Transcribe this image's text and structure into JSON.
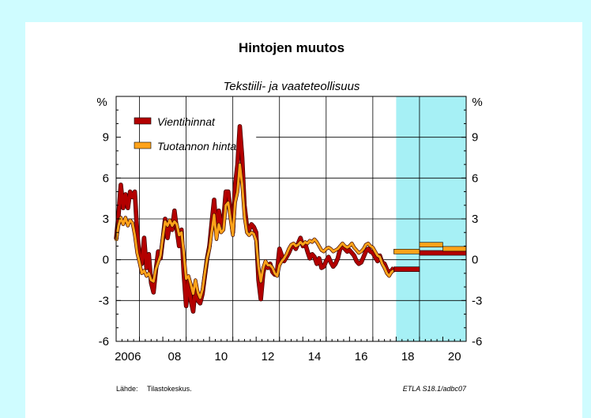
{
  "chart_data": {
    "type": "line",
    "title": "Hintojen muutos",
    "subtitle": "Tekstiili- ja vaateteollisuus",
    "y_unit_left": "%",
    "y_unit_right": "%",
    "ylim": [
      -6,
      12
    ],
    "xlim": [
      2006.0,
      2021.0
    ],
    "y_ticks": [
      -6,
      -3,
      0,
      3,
      6,
      9
    ],
    "x_tick_labels": [
      {
        "x": 2006.0,
        "label": "2006"
      },
      {
        "x": 2008.0,
        "label": "08"
      },
      {
        "x": 2010.0,
        "label": "10"
      },
      {
        "x": 2012.0,
        "label": "12"
      },
      {
        "x": 2014.0,
        "label": "14"
      },
      {
        "x": 2016.0,
        "label": "16"
      },
      {
        "x": 2018.0,
        "label": "18"
      },
      {
        "x": 2020.0,
        "label": "20"
      }
    ],
    "forecast_shading": [
      [
        2018.0,
        2021.0
      ]
    ],
    "grid": true,
    "legend_position": "top-left",
    "series": [
      {
        "name": "Vientihinnat",
        "color": "#b30000",
        "points": [
          [
            2006.0,
            1.5
          ],
          [
            2006.1,
            3.3
          ],
          [
            2006.2,
            5.5
          ],
          [
            2006.3,
            3.8
          ],
          [
            2006.4,
            4.8
          ],
          [
            2006.5,
            3.8
          ],
          [
            2006.6,
            5.0
          ],
          [
            2006.7,
            4.6
          ],
          [
            2006.8,
            5.0
          ],
          [
            2006.9,
            2.0
          ],
          [
            2007.0,
            0.2
          ],
          [
            2007.1,
            -0.3
          ],
          [
            2007.2,
            1.6
          ],
          [
            2007.3,
            -0.6
          ],
          [
            2007.4,
            0.4
          ],
          [
            2007.5,
            -1.7
          ],
          [
            2007.6,
            -2.4
          ],
          [
            2007.7,
            -0.8
          ],
          [
            2007.8,
            0.6
          ],
          [
            2007.9,
            0.1
          ],
          [
            2008.0,
            1.5
          ],
          [
            2008.1,
            3.0
          ],
          [
            2008.2,
            1.6
          ],
          [
            2008.3,
            2.6
          ],
          [
            2008.4,
            2.2
          ],
          [
            2008.5,
            3.6
          ],
          [
            2008.6,
            2.2
          ],
          [
            2008.7,
            1.0
          ],
          [
            2008.8,
            2.2
          ],
          [
            2008.9,
            -1.0
          ],
          [
            2009.0,
            -3.4
          ],
          [
            2009.1,
            -1.4
          ],
          [
            2009.2,
            -3.0
          ],
          [
            2009.3,
            -3.8
          ],
          [
            2009.4,
            -2.0
          ],
          [
            2009.5,
            -3.0
          ],
          [
            2009.6,
            -3.2
          ],
          [
            2009.7,
            -2.5
          ],
          [
            2009.8,
            -1.2
          ],
          [
            2009.9,
            0.1
          ],
          [
            2010.0,
            1.0
          ],
          [
            2010.1,
            2.8
          ],
          [
            2010.2,
            4.4
          ],
          [
            2010.3,
            2.0
          ],
          [
            2010.4,
            3.6
          ],
          [
            2010.5,
            2.5
          ],
          [
            2010.6,
            3.0
          ],
          [
            2010.7,
            5.0
          ],
          [
            2010.8,
            5.0
          ],
          [
            2010.9,
            3.6
          ],
          [
            2011.0,
            2.0
          ],
          [
            2011.1,
            5.5
          ],
          [
            2011.2,
            7.0
          ],
          [
            2011.3,
            9.8
          ],
          [
            2011.4,
            7.5
          ],
          [
            2011.5,
            4.0
          ],
          [
            2011.6,
            2.5
          ],
          [
            2011.7,
            2.2
          ],
          [
            2011.8,
            2.6
          ],
          [
            2011.9,
            2.4
          ],
          [
            2012.0,
            2.0
          ],
          [
            2012.1,
            -1.5
          ],
          [
            2012.2,
            -2.9
          ],
          [
            2012.3,
            -1.0
          ],
          [
            2012.4,
            -0.2
          ],
          [
            2012.5,
            -0.6
          ],
          [
            2012.6,
            -0.3
          ],
          [
            2012.7,
            -0.9
          ],
          [
            2012.8,
            -1.1
          ],
          [
            2012.9,
            -0.8
          ],
          [
            2013.0,
            0.8
          ],
          [
            2013.1,
            0.3
          ],
          [
            2013.2,
            -0.1
          ],
          [
            2013.3,
            0.2
          ],
          [
            2013.4,
            0.5
          ],
          [
            2013.5,
            0.9
          ],
          [
            2013.6,
            1.1
          ],
          [
            2013.7,
            0.8
          ],
          [
            2013.8,
            1.2
          ],
          [
            2013.9,
            1.6
          ],
          [
            2014.0,
            1.0
          ],
          [
            2014.1,
            1.2
          ],
          [
            2014.2,
            0.6
          ],
          [
            2014.3,
            0.1
          ],
          [
            2014.4,
            0.4
          ],
          [
            2014.5,
            0.2
          ],
          [
            2014.6,
            -0.3
          ],
          [
            2014.7,
            0.1
          ],
          [
            2014.8,
            -0.6
          ],
          [
            2014.9,
            -0.5
          ],
          [
            2015.0,
            -0.1
          ],
          [
            2015.1,
            0.2
          ],
          [
            2015.2,
            -0.2
          ],
          [
            2015.3,
            -0.5
          ],
          [
            2015.4,
            -0.3
          ],
          [
            2015.5,
            0.1
          ],
          [
            2015.6,
            0.8
          ],
          [
            2015.7,
            1.0
          ],
          [
            2015.8,
            0.8
          ],
          [
            2015.9,
            0.6
          ],
          [
            2016.0,
            0.7
          ],
          [
            2016.1,
            0.5
          ],
          [
            2016.2,
            0.3
          ],
          [
            2016.3,
            -0.1
          ],
          [
            2016.4,
            -0.3
          ],
          [
            2016.5,
            -0.2
          ],
          [
            2016.6,
            0.2
          ],
          [
            2016.7,
            0.6
          ],
          [
            2016.8,
            0.8
          ],
          [
            2016.9,
            0.6
          ],
          [
            2017.0,
            0.5
          ],
          [
            2017.1,
            0.2
          ],
          [
            2017.2,
            -0.1
          ],
          [
            2017.3,
            0.3
          ],
          [
            2017.4,
            -0.2
          ],
          [
            2017.5,
            -0.3
          ],
          [
            2017.6,
            -0.7
          ],
          [
            2017.7,
            -1.0
          ],
          [
            2017.8,
            -0.8
          ],
          [
            2017.9,
            -0.6
          ]
        ],
        "forecast": [
          {
            "x0": 2017.9,
            "x1": 2019.0,
            "y": -0.7
          },
          {
            "x0": 2019.0,
            "x1": 2021.0,
            "y": 0.5
          }
        ]
      },
      {
        "name": "Tuotannon hinta",
        "color": "#ffa31a",
        "points": [
          [
            2006.0,
            1.4
          ],
          [
            2006.1,
            2.5
          ],
          [
            2006.2,
            3.1
          ],
          [
            2006.3,
            2.6
          ],
          [
            2006.4,
            3.1
          ],
          [
            2006.5,
            2.5
          ],
          [
            2006.6,
            2.9
          ],
          [
            2006.7,
            2.7
          ],
          [
            2006.8,
            1.8
          ],
          [
            2006.9,
            0.5
          ],
          [
            2007.0,
            -0.2
          ],
          [
            2007.1,
            -1.0
          ],
          [
            2007.2,
            -0.8
          ],
          [
            2007.3,
            -1.2
          ],
          [
            2007.4,
            -1.0
          ],
          [
            2007.5,
            -1.5
          ],
          [
            2007.6,
            -1.6
          ],
          [
            2007.7,
            -0.7
          ],
          [
            2007.8,
            -0.2
          ],
          [
            2007.9,
            0.3
          ],
          [
            2008.0,
            1.7
          ],
          [
            2008.1,
            2.8
          ],
          [
            2008.2,
            2.5
          ],
          [
            2008.3,
            2.9
          ],
          [
            2008.4,
            2.5
          ],
          [
            2008.5,
            2.8
          ],
          [
            2008.6,
            2.6
          ],
          [
            2008.7,
            1.8
          ],
          [
            2008.8,
            2.0
          ],
          [
            2008.9,
            0.5
          ],
          [
            2009.0,
            -1.4
          ],
          [
            2009.1,
            -1.2
          ],
          [
            2009.2,
            -1.8
          ],
          [
            2009.3,
            -2.5
          ],
          [
            2009.4,
            -1.5
          ],
          [
            2009.5,
            -2.4
          ],
          [
            2009.6,
            -2.8
          ],
          [
            2009.7,
            -2.2
          ],
          [
            2009.8,
            -1.0
          ],
          [
            2009.9,
            0.1
          ],
          [
            2010.0,
            0.8
          ],
          [
            2010.1,
            2.1
          ],
          [
            2010.2,
            3.3
          ],
          [
            2010.3,
            1.5
          ],
          [
            2010.4,
            2.6
          ],
          [
            2010.5,
            2.0
          ],
          [
            2010.6,
            2.2
          ],
          [
            2010.7,
            4.0
          ],
          [
            2010.8,
            4.2
          ],
          [
            2010.9,
            3.0
          ],
          [
            2011.0,
            1.8
          ],
          [
            2011.1,
            4.2
          ],
          [
            2011.2,
            5.0
          ],
          [
            2011.3,
            7.0
          ],
          [
            2011.4,
            5.5
          ],
          [
            2011.5,
            3.2
          ],
          [
            2011.6,
            2.0
          ],
          [
            2011.7,
            1.8
          ],
          [
            2011.8,
            2.0
          ],
          [
            2011.9,
            1.9
          ],
          [
            2012.0,
            1.4
          ],
          [
            2012.1,
            -0.5
          ],
          [
            2012.2,
            -1.6
          ],
          [
            2012.3,
            -0.6
          ],
          [
            2012.4,
            -0.1
          ],
          [
            2012.5,
            -0.4
          ],
          [
            2012.6,
            -0.4
          ],
          [
            2012.7,
            -0.6
          ],
          [
            2012.8,
            -1.0
          ],
          [
            2012.9,
            -1.2
          ],
          [
            2013.0,
            -0.4
          ],
          [
            2013.1,
            -0.1
          ],
          [
            2013.2,
            0.1
          ],
          [
            2013.3,
            0.4
          ],
          [
            2013.4,
            0.8
          ],
          [
            2013.5,
            1.1
          ],
          [
            2013.6,
            1.2
          ],
          [
            2013.7,
            1.0
          ],
          [
            2013.8,
            1.1
          ],
          [
            2013.9,
            1.3
          ],
          [
            2014.0,
            1.1
          ],
          [
            2014.1,
            1.3
          ],
          [
            2014.2,
            1.2
          ],
          [
            2014.3,
            1.4
          ],
          [
            2014.4,
            1.3
          ],
          [
            2014.5,
            1.5
          ],
          [
            2014.6,
            1.3
          ],
          [
            2014.7,
            1.0
          ],
          [
            2014.8,
            0.7
          ],
          [
            2014.9,
            0.6
          ],
          [
            2015.0,
            0.8
          ],
          [
            2015.1,
            0.9
          ],
          [
            2015.2,
            0.8
          ],
          [
            2015.3,
            0.6
          ],
          [
            2015.4,
            0.7
          ],
          [
            2015.5,
            0.8
          ],
          [
            2015.6,
            1.0
          ],
          [
            2015.7,
            1.2
          ],
          [
            2015.8,
            1.0
          ],
          [
            2015.9,
            0.9
          ],
          [
            2016.0,
            1.0
          ],
          [
            2016.1,
            1.2
          ],
          [
            2016.2,
            0.9
          ],
          [
            2016.3,
            0.7
          ],
          [
            2016.4,
            0.5
          ],
          [
            2016.5,
            0.6
          ],
          [
            2016.6,
            0.8
          ],
          [
            2016.7,
            1.1
          ],
          [
            2016.8,
            1.2
          ],
          [
            2016.9,
            1.0
          ],
          [
            2017.0,
            0.9
          ],
          [
            2017.1,
            0.6
          ],
          [
            2017.2,
            0.3
          ],
          [
            2017.3,
            0.2
          ],
          [
            2017.4,
            -0.3
          ],
          [
            2017.5,
            -0.6
          ],
          [
            2017.6,
            -1.0
          ],
          [
            2017.7,
            -1.2
          ],
          [
            2017.8,
            -0.9
          ],
          [
            2017.9,
            -0.8
          ]
        ],
        "forecast": [
          {
            "x0": 2017.9,
            "x1": 2019.0,
            "y": 0.6
          },
          {
            "x0": 2019.0,
            "x1": 2020.0,
            "y": 1.1
          },
          {
            "x0": 2020.0,
            "x1": 2021.0,
            "y": 0.8
          }
        ]
      }
    ]
  },
  "footer": {
    "source_label": "Lähde:",
    "source_value": "Tilastokeskus.",
    "code": "ETLA S18.1/adbc07"
  }
}
